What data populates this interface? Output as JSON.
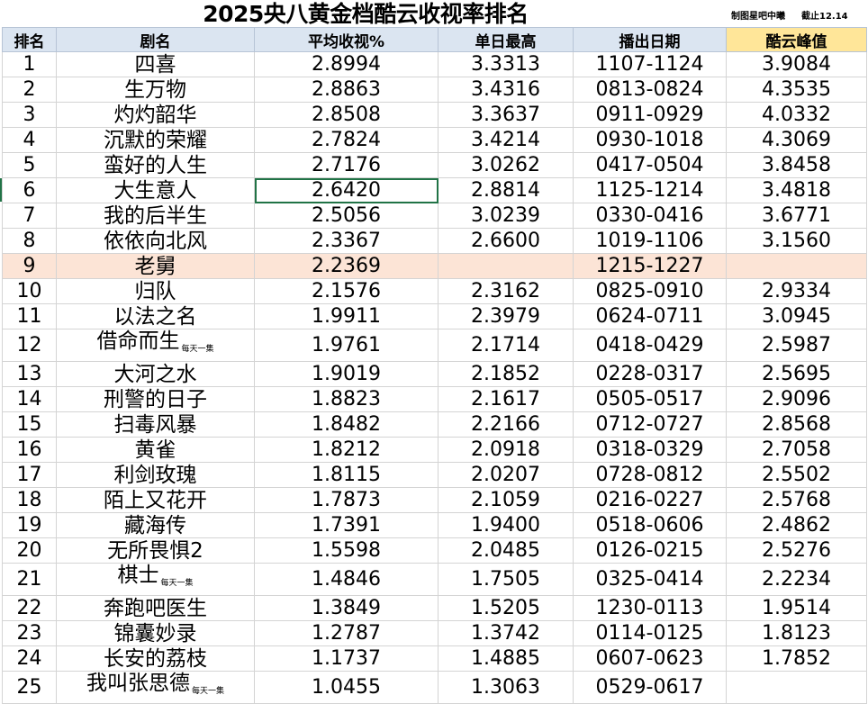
{
  "title": "2025央八黄金档酷云收视率排名",
  "credit": {
    "maker": "制图星吧中曦",
    "cutoff": "截止12.14"
  },
  "headers": [
    "排名",
    "剧名",
    "平均收视%",
    "单日最高",
    "播出日期",
    "酷云峰值"
  ],
  "rows": [
    {
      "rank": "1",
      "name": "四喜",
      "note": "",
      "avg": "2.8994",
      "max": "3.3313",
      "dates": "1107-1124",
      "peak": "3.9084"
    },
    {
      "rank": "2",
      "name": "生万物",
      "note": "",
      "avg": "2.8863",
      "max": "3.4316",
      "dates": "0813-0824",
      "peak": "4.3535"
    },
    {
      "rank": "3",
      "name": "灼灼韶华",
      "note": "",
      "avg": "2.8508",
      "max": "3.3637",
      "dates": "0911-0929",
      "peak": "4.0332"
    },
    {
      "rank": "4",
      "name": "沉默的荣耀",
      "note": "",
      "avg": "2.7824",
      "max": "3.4214",
      "dates": "0930-1018",
      "peak": "4.3069"
    },
    {
      "rank": "5",
      "name": "蛮好的人生",
      "note": "",
      "avg": "2.7176",
      "max": "3.0262",
      "dates": "0417-0504",
      "peak": "3.8458"
    },
    {
      "rank": "6",
      "name": "大生意人",
      "note": "",
      "avg": "2.6420",
      "max": "2.8814",
      "dates": "1125-1214",
      "peak": "3.4818"
    },
    {
      "rank": "7",
      "name": "我的后半生",
      "note": "",
      "avg": "2.5056",
      "max": "3.0239",
      "dates": "0330-0416",
      "peak": "3.6771"
    },
    {
      "rank": "8",
      "name": "依依向北风",
      "note": "",
      "avg": "2.3367",
      "max": "2.6600",
      "dates": "1019-1106",
      "peak": "3.1560"
    },
    {
      "rank": "9",
      "name": "老舅",
      "note": "",
      "avg": "2.2369",
      "max": "",
      "dates": "1215-1227",
      "peak": ""
    },
    {
      "rank": "10",
      "name": "归队",
      "note": "",
      "avg": "2.1576",
      "max": "2.3162",
      "dates": "0825-0910",
      "peak": "2.9334"
    },
    {
      "rank": "11",
      "name": "以法之名",
      "note": "",
      "avg": "1.9911",
      "max": "2.3979",
      "dates": "0624-0711",
      "peak": "3.0945"
    },
    {
      "rank": "12",
      "name": "借命而生",
      "note": "每天一集",
      "avg": "1.9761",
      "max": "2.1714",
      "dates": "0418-0429",
      "peak": "2.5987"
    },
    {
      "rank": "13",
      "name": "大河之水",
      "note": "",
      "avg": "1.9019",
      "max": "2.1852",
      "dates": "0228-0317",
      "peak": "2.5695"
    },
    {
      "rank": "14",
      "name": "刑警的日子",
      "note": "",
      "avg": "1.8823",
      "max": "2.1617",
      "dates": "0505-0517",
      "peak": "2.9096"
    },
    {
      "rank": "15",
      "name": "扫毒风暴",
      "note": "",
      "avg": "1.8482",
      "max": "2.2166",
      "dates": "0712-0727",
      "peak": "2.8568"
    },
    {
      "rank": "16",
      "name": "黄雀",
      "note": "",
      "avg": "1.8212",
      "max": "2.0918",
      "dates": "0318-0329",
      "peak": "2.7058"
    },
    {
      "rank": "17",
      "name": "利剑玫瑰",
      "note": "",
      "avg": "1.8115",
      "max": "2.0207",
      "dates": "0728-0812",
      "peak": "2.5502"
    },
    {
      "rank": "18",
      "name": "陌上又花开",
      "note": "",
      "avg": "1.7873",
      "max": "2.1059",
      "dates": "0216-0227",
      "peak": "2.5768"
    },
    {
      "rank": "19",
      "name": "藏海传",
      "note": "",
      "avg": "1.7391",
      "max": "1.9400",
      "dates": "0518-0606",
      "peak": "2.4862"
    },
    {
      "rank": "20",
      "name": "无所畏惧2",
      "note": "",
      "avg": "1.5598",
      "max": "2.0485",
      "dates": "0126-0215",
      "peak": "2.5276"
    },
    {
      "rank": "21",
      "name": "棋士",
      "note": "每天一集",
      "avg": "1.4846",
      "max": "1.7505",
      "dates": "0325-0414",
      "peak": "2.2234"
    },
    {
      "rank": "22",
      "name": "奔跑吧医生",
      "note": "",
      "avg": "1.3849",
      "max": "1.5205",
      "dates": "1230-0113",
      "peak": "1.9514"
    },
    {
      "rank": "23",
      "name": "锦囊妙录",
      "note": "",
      "avg": "1.2787",
      "max": "1.3742",
      "dates": "0114-0125",
      "peak": "1.8123"
    },
    {
      "rank": "24",
      "name": "长安的荔枝",
      "note": "",
      "avg": "1.1737",
      "max": "1.4885",
      "dates": "0607-0623",
      "peak": "1.7852"
    },
    {
      "rank": "25",
      "name": "我叫张思德",
      "note": "每天一集",
      "avg": "1.0455",
      "max": "1.3063",
      "dates": "0529-0617",
      "peak": ""
    }
  ],
  "highlight_rank": "9",
  "selected_cell": {
    "rank": "6",
    "column": "avg"
  },
  "colors": {
    "header_bg": "#dbe5f1",
    "peak_header_bg": "#ffe699",
    "highlight_row_bg": "#fce4d6",
    "selection": "#217346"
  }
}
